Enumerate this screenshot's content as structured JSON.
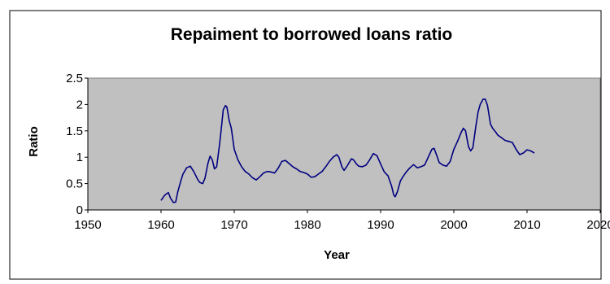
{
  "chart_data": {
    "type": "line",
    "title": "Repaiment to borrowed loans ratio",
    "xlabel": "Year",
    "ylabel": "Ratio",
    "xlim": [
      1950,
      2020
    ],
    "ylim": [
      0,
      2.5
    ],
    "xticks": [
      "1950",
      "1960",
      "1970",
      "1980",
      "1990",
      "2000",
      "2010",
      "2020"
    ],
    "yticks": [
      "0",
      "0.5",
      "1",
      "1.5",
      "2",
      "2.5"
    ],
    "grid": false,
    "legend": "none",
    "colors": {
      "line": "#000080",
      "plot_bg": "#c0c0c0",
      "frame": "#000000"
    },
    "series": [
      {
        "x": [
          1960,
          1960.5,
          1961,
          1961.3,
          1961.7,
          1962,
          1962.3,
          1962.7,
          1963,
          1963.5,
          1964,
          1964.5,
          1965,
          1965.3,
          1965.7,
          1966,
          1966.4,
          1966.7,
          1967,
          1967.3,
          1967.6,
          1968,
          1968.2,
          1968.5,
          1968.8,
          1969,
          1969.3,
          1969.6,
          1970,
          1970.5,
          1971,
          1971.5,
          1972,
          1972.5,
          1973,
          1973.5,
          1974,
          1974.5,
          1975,
          1975.5,
          1976,
          1976.5,
          1977,
          1977.5,
          1978,
          1978.5,
          1979,
          1979.5,
          1980,
          1980.5,
          1981,
          1981.5,
          1982,
          1982.5,
          1983,
          1983.5,
          1984,
          1984.3,
          1984.7,
          1985,
          1985.5,
          1986,
          1986.3,
          1986.7,
          1987,
          1987.5,
          1988,
          1988.5,
          1989,
          1989.5,
          1990,
          1990.5,
          1991,
          1991.5,
          1991.8,
          1992,
          1992.3,
          1992.7,
          1993,
          1993.5,
          1994,
          1994.5,
          1995,
          1995.5,
          1996,
          1996.5,
          1997,
          1997.3,
          1997.7,
          1998,
          1998.5,
          1999,
          1999.5,
          2000,
          2000.5,
          2001,
          2001.3,
          2001.6,
          2002,
          2002.3,
          2002.6,
          2003,
          2003.3,
          2003.6,
          2004,
          2004.3,
          2004.6,
          2005,
          2005.3,
          2005.7,
          2006,
          2006.5,
          2007,
          2007.5,
          2008,
          2008.5,
          2009,
          2009.5,
          2010,
          2010.5,
          2011
        ],
        "y": [
          0.18,
          0.28,
          0.33,
          0.22,
          0.14,
          0.15,
          0.35,
          0.55,
          0.68,
          0.8,
          0.83,
          0.72,
          0.58,
          0.52,
          0.5,
          0.6,
          0.88,
          1.02,
          0.95,
          0.78,
          0.82,
          1.25,
          1.5,
          1.9,
          1.98,
          1.95,
          1.7,
          1.55,
          1.15,
          0.95,
          0.82,
          0.73,
          0.68,
          0.61,
          0.57,
          0.63,
          0.7,
          0.73,
          0.72,
          0.7,
          0.79,
          0.92,
          0.94,
          0.88,
          0.82,
          0.78,
          0.73,
          0.71,
          0.68,
          0.62,
          0.63,
          0.68,
          0.73,
          0.82,
          0.92,
          1.0,
          1.05,
          1.0,
          0.82,
          0.75,
          0.85,
          0.97,
          0.95,
          0.87,
          0.83,
          0.82,
          0.85,
          0.95,
          1.07,
          1.03,
          0.87,
          0.72,
          0.65,
          0.45,
          0.28,
          0.25,
          0.35,
          0.55,
          0.62,
          0.72,
          0.8,
          0.86,
          0.8,
          0.82,
          0.85,
          1.0,
          1.15,
          1.17,
          1.02,
          0.9,
          0.85,
          0.83,
          0.92,
          1.15,
          1.3,
          1.47,
          1.55,
          1.5,
          1.2,
          1.12,
          1.18,
          1.58,
          1.85,
          2.0,
          2.1,
          2.1,
          1.98,
          1.63,
          1.55,
          1.48,
          1.42,
          1.37,
          1.32,
          1.3,
          1.28,
          1.15,
          1.05,
          1.08,
          1.14,
          1.12,
          1.08
        ]
      }
    ]
  }
}
